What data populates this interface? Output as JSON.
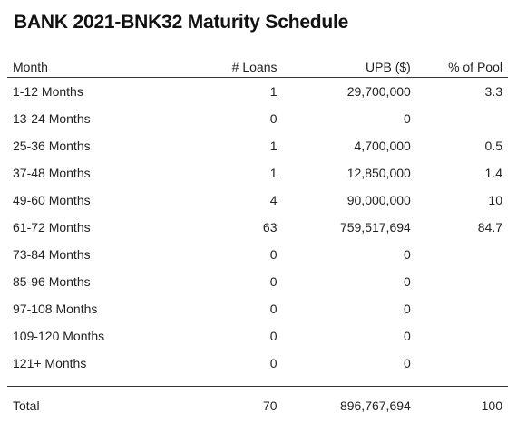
{
  "title": "BANK 2021-BNK32 Maturity Schedule",
  "columns": {
    "month": "Month",
    "loans": "# Loans",
    "upb": "UPB ($)",
    "pool": "% of Pool"
  },
  "rows": [
    {
      "month": "1-12 Months",
      "loans": "1",
      "upb": "29,700,000",
      "pool": "3.3"
    },
    {
      "month": "13-24 Months",
      "loans": "0",
      "upb": "0",
      "pool": ""
    },
    {
      "month": "25-36 Months",
      "loans": "1",
      "upb": "4,700,000",
      "pool": "0.5"
    },
    {
      "month": "37-48 Months",
      "loans": "1",
      "upb": "12,850,000",
      "pool": "1.4"
    },
    {
      "month": "49-60 Months",
      "loans": "4",
      "upb": "90,000,000",
      "pool": "10"
    },
    {
      "month": "61-72 Months",
      "loans": "63",
      "upb": "759,517,694",
      "pool": "84.7"
    },
    {
      "month": "73-84 Months",
      "loans": "0",
      "upb": "0",
      "pool": ""
    },
    {
      "month": "85-96 Months",
      "loans": "0",
      "upb": "0",
      "pool": ""
    },
    {
      "month": "97-108 Months",
      "loans": "0",
      "upb": "0",
      "pool": ""
    },
    {
      "month": "109-120 Months",
      "loans": "0",
      "upb": "0",
      "pool": ""
    },
    {
      "month": "121+ Months",
      "loans": "0",
      "upb": "0",
      "pool": ""
    }
  ],
  "total": {
    "month": "Total",
    "loans": "70",
    "upb": "896,767,694",
    "pool": "100"
  }
}
